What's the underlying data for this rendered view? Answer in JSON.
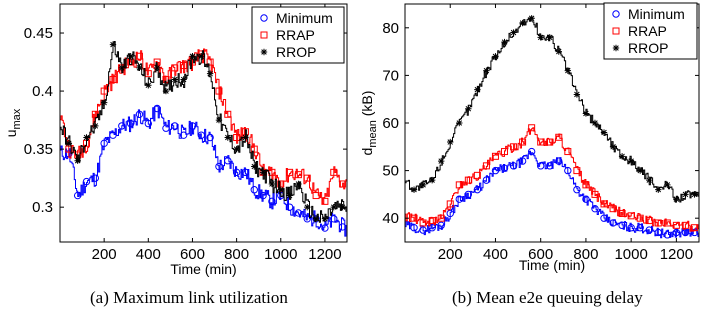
{
  "chart_data": [
    {
      "type": "line",
      "caption": "(a) Maximum link utilization",
      "xlabel": "Time (min)",
      "ylabel": "u",
      "ylabel_sub": "max",
      "xlim": [
        0,
        1300
      ],
      "ylim": [
        0.27,
        0.475
      ],
      "xticks": [
        200,
        400,
        600,
        800,
        1000,
        1200
      ],
      "yticks": [
        0.3,
        0.35,
        0.4,
        0.45
      ],
      "ytick_labels": [
        "0.3",
        "0.35",
        "0.4",
        "0.45"
      ],
      "legend": "top-right",
      "series": [
        {
          "name": "Minimum",
          "color": "#0000ff",
          "marker": "circle",
          "x": [
            0,
            40,
            80,
            120,
            160,
            200,
            240,
            280,
            320,
            360,
            400,
            440,
            480,
            520,
            560,
            600,
            640,
            680,
            720,
            760,
            800,
            840,
            880,
            920,
            960,
            1000,
            1040,
            1080,
            1120,
            1160,
            1200,
            1240,
            1280,
            1300
          ],
          "y": [
            0.347,
            0.346,
            0.31,
            0.322,
            0.325,
            0.355,
            0.362,
            0.37,
            0.372,
            0.38,
            0.372,
            0.385,
            0.368,
            0.37,
            0.362,
            0.37,
            0.362,
            0.36,
            0.335,
            0.34,
            0.33,
            0.33,
            0.315,
            0.31,
            0.305,
            0.31,
            0.3,
            0.295,
            0.29,
            0.29,
            0.282,
            0.29,
            0.283,
            0.28
          ]
        },
        {
          "name": "RRAP",
          "color": "#ff0000",
          "marker": "square",
          "x": [
            0,
            40,
            80,
            120,
            160,
            200,
            240,
            280,
            320,
            360,
            400,
            440,
            480,
            520,
            560,
            600,
            640,
            680,
            720,
            760,
            800,
            840,
            880,
            920,
            960,
            1000,
            1040,
            1080,
            1120,
            1160,
            1200,
            1240,
            1280,
            1300
          ],
          "y": [
            0.38,
            0.35,
            0.345,
            0.355,
            0.38,
            0.4,
            0.41,
            0.42,
            0.425,
            0.43,
            0.415,
            0.425,
            0.41,
            0.42,
            0.422,
            0.425,
            0.432,
            0.425,
            0.4,
            0.38,
            0.36,
            0.365,
            0.35,
            0.33,
            0.33,
            0.32,
            0.33,
            0.328,
            0.325,
            0.31,
            0.305,
            0.33,
            0.32,
            0.32
          ]
        },
        {
          "name": "RROP",
          "color": "#000000",
          "marker": "asterisk",
          "x": [
            0,
            40,
            80,
            120,
            160,
            200,
            240,
            280,
            320,
            360,
            400,
            440,
            480,
            520,
            560,
            600,
            640,
            680,
            720,
            760,
            800,
            840,
            880,
            920,
            960,
            1000,
            1040,
            1080,
            1120,
            1160,
            1200,
            1240,
            1280,
            1300
          ],
          "y": [
            0.37,
            0.355,
            0.34,
            0.36,
            0.37,
            0.39,
            0.44,
            0.42,
            0.43,
            0.42,
            0.405,
            0.42,
            0.4,
            0.41,
            0.41,
            0.43,
            0.43,
            0.415,
            0.375,
            0.36,
            0.35,
            0.36,
            0.335,
            0.33,
            0.32,
            0.315,
            0.31,
            0.32,
            0.3,
            0.29,
            0.29,
            0.3,
            0.3,
            0.3
          ]
        }
      ]
    },
    {
      "type": "line",
      "caption": "(b) Mean e2e queuing delay",
      "xlabel": "Time (min)",
      "ylabel": "d",
      "ylabel_sub": "mean",
      "ylabel_unit": "(kB)",
      "xlim": [
        0,
        1300
      ],
      "ylim": [
        35,
        85
      ],
      "xticks": [
        200,
        400,
        600,
        800,
        1000,
        1200
      ],
      "yticks": [
        40,
        50,
        60,
        70,
        80
      ],
      "ytick_labels": [
        "40",
        "50",
        "60",
        "70",
        "80"
      ],
      "legend": "top-right",
      "series": [
        {
          "name": "Minimum",
          "color": "#0000ff",
          "marker": "circle",
          "x": [
            0,
            40,
            80,
            120,
            160,
            200,
            240,
            280,
            320,
            360,
            400,
            440,
            480,
            520,
            560,
            600,
            640,
            680,
            720,
            760,
            800,
            840,
            880,
            920,
            960,
            1000,
            1040,
            1080,
            1120,
            1160,
            1200,
            1240,
            1280,
            1300
          ],
          "y": [
            38.5,
            38,
            37.5,
            38,
            38.5,
            41,
            44,
            45,
            46,
            48,
            50,
            50.5,
            51,
            52,
            54,
            51,
            51,
            52,
            50,
            46,
            44,
            42,
            40,
            39,
            38.5,
            38,
            38,
            37.5,
            37,
            36.5,
            37,
            37,
            37,
            37
          ]
        },
        {
          "name": "RRAP",
          "color": "#ff0000",
          "marker": "square",
          "x": [
            0,
            40,
            80,
            120,
            160,
            200,
            240,
            280,
            320,
            360,
            400,
            440,
            480,
            520,
            560,
            600,
            640,
            680,
            720,
            760,
            800,
            840,
            880,
            920,
            960,
            1000,
            1040,
            1080,
            1120,
            1160,
            1200,
            1240,
            1280,
            1300
          ],
          "y": [
            40.5,
            40,
            39,
            39.5,
            40,
            43,
            47,
            48,
            49,
            51,
            53,
            54,
            55,
            56,
            59,
            56,
            56,
            57,
            54,
            50,
            47,
            45,
            43,
            42,
            41,
            40.5,
            40,
            39.5,
            39,
            39,
            38.5,
            38.5,
            38,
            38
          ]
        },
        {
          "name": "RROP",
          "color": "#000000",
          "marker": "asterisk",
          "x": [
            0,
            40,
            80,
            120,
            160,
            200,
            240,
            280,
            320,
            360,
            400,
            440,
            480,
            520,
            560,
            600,
            640,
            680,
            720,
            760,
            800,
            840,
            880,
            920,
            960,
            1000,
            1040,
            1080,
            1120,
            1160,
            1200,
            1240,
            1280,
            1300
          ],
          "y": [
            48,
            46,
            47,
            48,
            52,
            56,
            60,
            63,
            67,
            71,
            74,
            77,
            79,
            81,
            82,
            78,
            78,
            75,
            71,
            66,
            62,
            60,
            58,
            55,
            53,
            52,
            50,
            48,
            46,
            47,
            44,
            45,
            45,
            44
          ]
        }
      ]
    }
  ]
}
